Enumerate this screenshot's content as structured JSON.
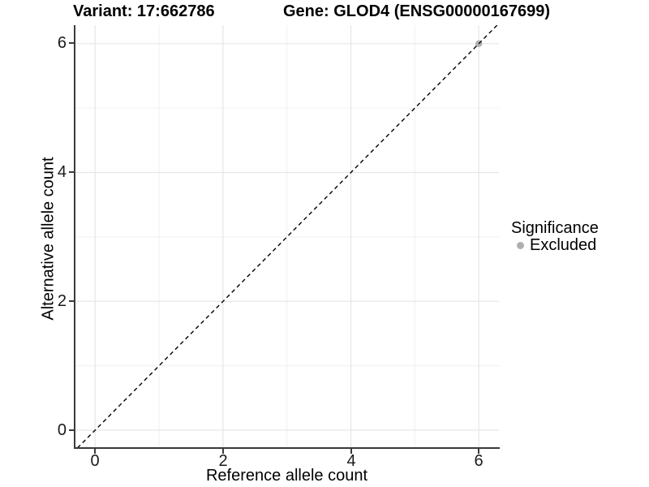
{
  "header": {
    "variant_title": "Variant: 17:662786",
    "gene_title": "Gene: GLOD4 (ENSG00000167699)"
  },
  "axes": {
    "x_label": "Reference allele count",
    "y_label": "Alternative allele count",
    "x_tick_labels": [
      "0",
      "2",
      "4",
      "6"
    ],
    "y_tick_labels": [
      "0",
      "2",
      "4",
      "6"
    ]
  },
  "legend": {
    "title": "Significance",
    "items": [
      {
        "label": "Excluded"
      }
    ]
  },
  "colors": {
    "point": "#b0b0b0",
    "grid_major": "#e6e6e6",
    "grid_minor": "#f0f0f0",
    "axis_line": "#3a3a3a",
    "dashed_line": "#000000",
    "text": "#000000"
  },
  "chart_data": {
    "type": "scatter",
    "title_left": "Variant: 17:662786",
    "title_right": "Gene: GLOD4 (ENSG00000167699)",
    "xlabel": "Reference allele count",
    "ylabel": "Alternative allele count",
    "xlim": [
      -0.3,
      6.3
    ],
    "ylim": [
      -0.3,
      6.3
    ],
    "x_ticks": [
      0,
      2,
      4,
      6
    ],
    "y_ticks": [
      0,
      2,
      4,
      6
    ],
    "x_minor_ticks": [
      1,
      3,
      5
    ],
    "y_minor_ticks": [
      1,
      3,
      5
    ],
    "grid": true,
    "reference_line": {
      "slope": 1,
      "intercept": 0,
      "style": "dashed",
      "color": "#000000"
    },
    "series": [
      {
        "name": "Excluded",
        "color": "#b0b0b0",
        "points": [
          {
            "x": 6,
            "y": 6
          }
        ]
      }
    ],
    "legend": {
      "title": "Significance",
      "position": "right",
      "items": [
        {
          "label": "Excluded",
          "color": "#b0b0b0"
        }
      ]
    }
  }
}
